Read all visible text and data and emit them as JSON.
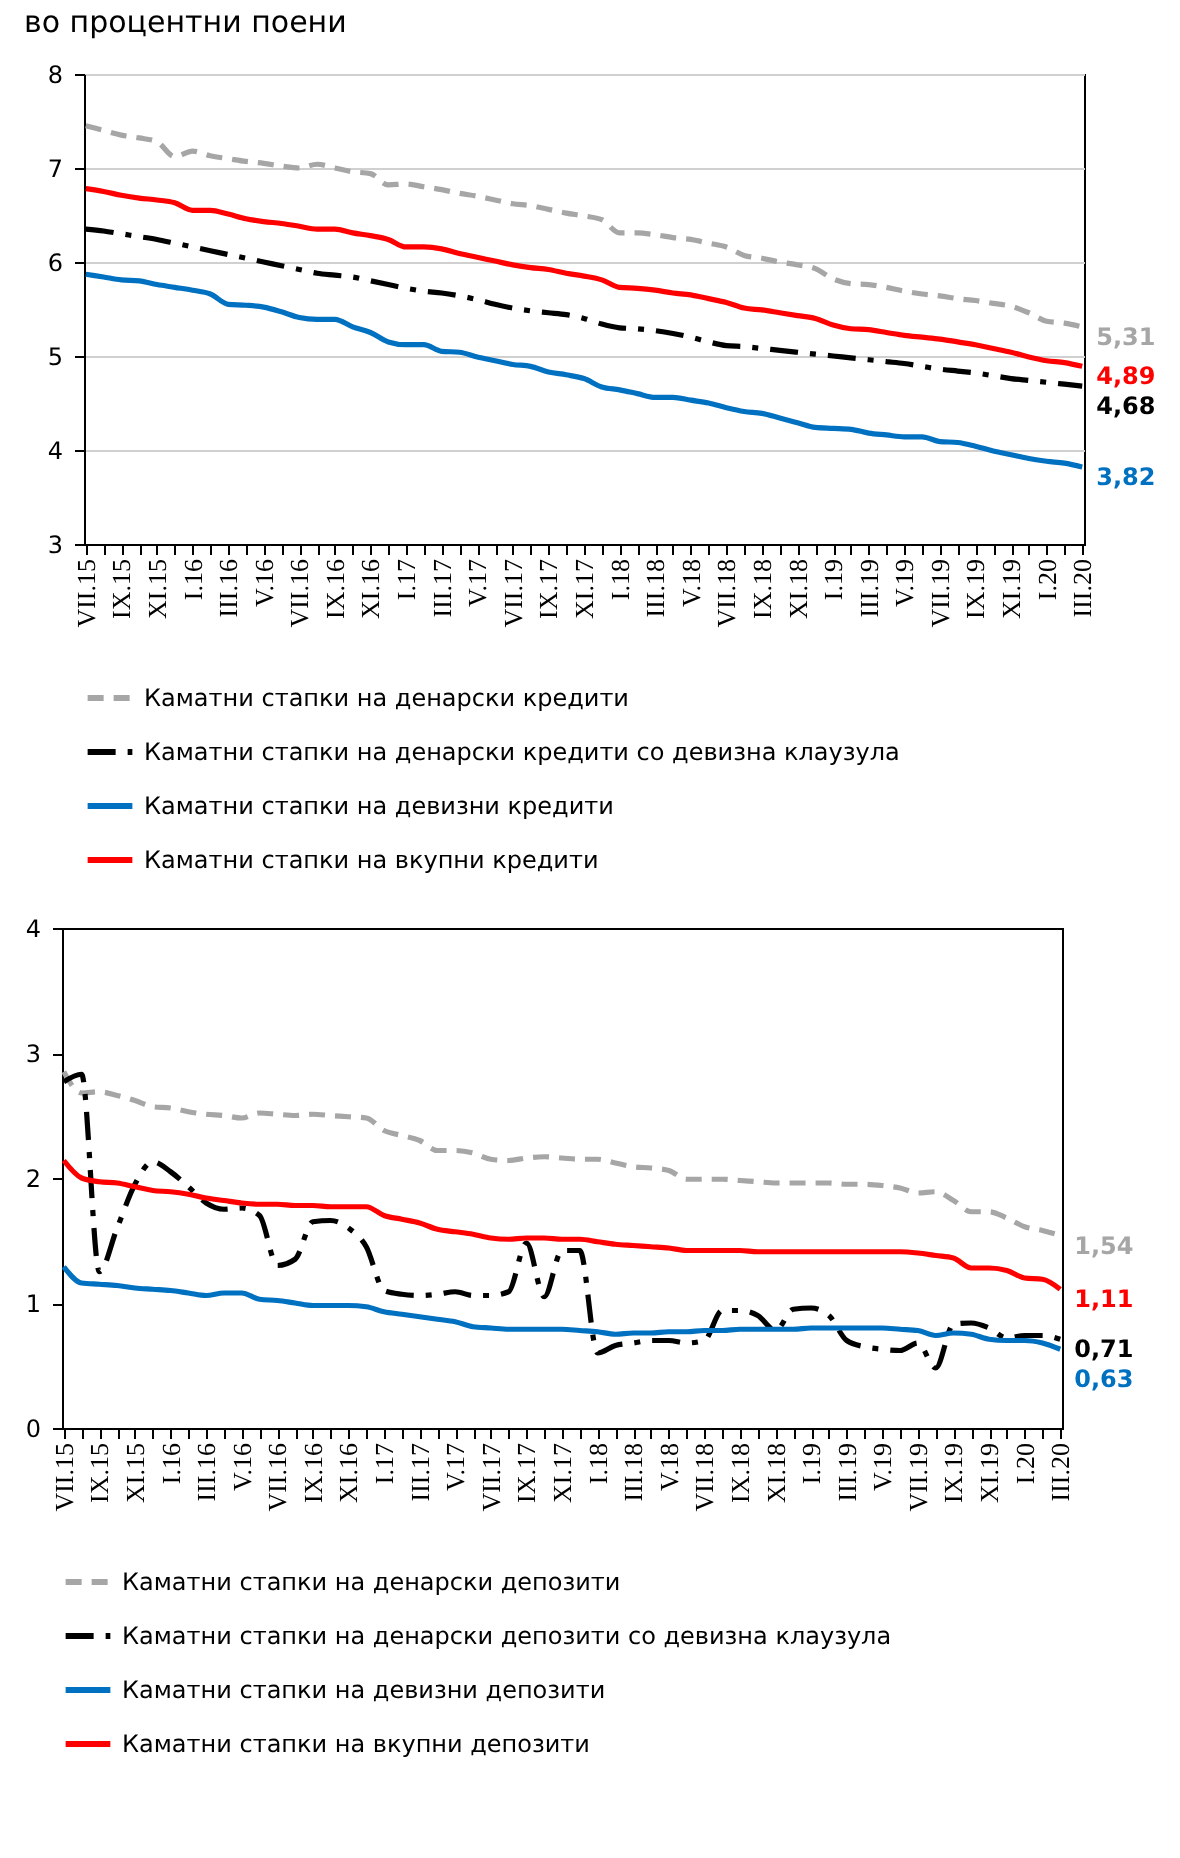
{
  "chart_data": [
    {
      "type": "line",
      "title": "во процентни поени",
      "categories": [
        "VII.15",
        null,
        "IX.15",
        null,
        "XI.15",
        null,
        "I.16",
        null,
        "III.16",
        null,
        "V.16",
        null,
        "VII.16",
        null,
        "IX.16",
        null,
        "XI.16",
        null,
        "I.17",
        null,
        "III.17",
        null,
        "V.17",
        null,
        "VII.17",
        null,
        "IX.17",
        null,
        "XI.17",
        null,
        "I.18",
        null,
        "III.18",
        null,
        "V.18",
        null,
        "VII.18",
        null,
        "IX.18",
        null,
        "XI.18",
        null,
        "I.19",
        null,
        "III.19",
        null,
        "V.19",
        null,
        "VII.19",
        null,
        "IX.19",
        null,
        "XI.19",
        null,
        "I.20",
        null,
        "III.20"
      ],
      "ylim": [
        3,
        8
      ],
      "yticks": [
        3,
        4,
        5,
        6,
        7,
        8
      ],
      "grid": "y",
      "legend": "bottom",
      "series": [
        {
          "name": "Каматни стапки на денарски кредити",
          "color": "#a6a6a6",
          "line_style": "dashed",
          "values": [
            7.45,
            7.4,
            7.35,
            7.32,
            7.28,
            7.12,
            7.18,
            7.13,
            7.1,
            7.07,
            7.05,
            7.02,
            7.0,
            7.04,
            7.0,
            6.96,
            6.94,
            6.82,
            6.83,
            6.8,
            6.77,
            6.73,
            6.7,
            6.66,
            6.62,
            6.6,
            6.56,
            6.52,
            6.49,
            6.45,
            6.31,
            6.31,
            6.29,
            6.26,
            6.24,
            6.2,
            6.16,
            6.07,
            6.04,
            6.0,
            5.97,
            5.93,
            5.82,
            5.77,
            5.76,
            5.73,
            5.69,
            5.66,
            5.64,
            5.61,
            5.59,
            5.56,
            5.53,
            5.46,
            5.37,
            5.35,
            5.31
          ],
          "value_labels": [
            null,
            null,
            null,
            null,
            null,
            null,
            null,
            null,
            null,
            null,
            null,
            null,
            null,
            null,
            null,
            null,
            null,
            null,
            null,
            null,
            null,
            null,
            null,
            null,
            null,
            null,
            null,
            null,
            null,
            null,
            null,
            null,
            null,
            null,
            null,
            null,
            null,
            null,
            null,
            null,
            null,
            null,
            null,
            null,
            null,
            null,
            null,
            null,
            null,
            null,
            null,
            null,
            null,
            null,
            null,
            null,
            "5,31"
          ]
        },
        {
          "name": "Каматни стапки на денарски кредити со девизна клаузула",
          "color": "#000000",
          "line_style": "dashdot",
          "values": [
            6.35,
            6.33,
            6.3,
            6.27,
            6.24,
            6.2,
            6.16,
            6.12,
            6.08,
            6.04,
            6.0,
            5.96,
            5.92,
            5.88,
            5.86,
            5.84,
            5.8,
            5.76,
            5.72,
            5.69,
            5.67,
            5.64,
            5.6,
            5.55,
            5.51,
            5.48,
            5.46,
            5.44,
            5.4,
            5.34,
            5.3,
            5.29,
            5.27,
            5.24,
            5.2,
            5.15,
            5.11,
            5.1,
            5.08,
            5.06,
            5.04,
            5.02,
            5.0,
            4.98,
            4.96,
            4.94,
            4.92,
            4.89,
            4.86,
            4.84,
            4.82,
            4.79,
            4.76,
            4.74,
            4.72,
            4.7,
            4.68
          ],
          "value_labels": [
            null,
            null,
            null,
            null,
            null,
            null,
            null,
            null,
            null,
            null,
            null,
            null,
            null,
            null,
            null,
            null,
            null,
            null,
            null,
            null,
            null,
            null,
            null,
            null,
            null,
            null,
            null,
            null,
            null,
            null,
            null,
            null,
            null,
            null,
            null,
            null,
            null,
            null,
            null,
            null,
            null,
            null,
            null,
            null,
            null,
            null,
            null,
            null,
            null,
            null,
            null,
            null,
            null,
            null,
            null,
            null,
            "4,68"
          ]
        },
        {
          "name": "Каматни стапки на девизни кредити",
          "color": "#0070c0",
          "line_style": "solid",
          "values": [
            5.87,
            5.84,
            5.81,
            5.8,
            5.76,
            5.73,
            5.7,
            5.66,
            5.55,
            5.54,
            5.52,
            5.47,
            5.41,
            5.39,
            5.39,
            5.31,
            5.25,
            5.15,
            5.12,
            5.12,
            5.05,
            5.04,
            4.99,
            4.95,
            4.91,
            4.89,
            4.83,
            4.8,
            4.76,
            4.67,
            4.64,
            4.6,
            4.56,
            4.56,
            4.53,
            4.5,
            4.45,
            4.41,
            4.39,
            4.34,
            4.29,
            4.24,
            4.23,
            4.22,
            4.18,
            4.16,
            4.14,
            4.14,
            4.09,
            4.08,
            4.04,
            3.99,
            3.95,
            3.91,
            3.88,
            3.86,
            3.82
          ],
          "value_labels": [
            null,
            null,
            null,
            null,
            null,
            null,
            null,
            null,
            null,
            null,
            null,
            null,
            null,
            null,
            null,
            null,
            null,
            null,
            null,
            null,
            null,
            null,
            null,
            null,
            null,
            null,
            null,
            null,
            null,
            null,
            null,
            null,
            null,
            null,
            null,
            null,
            null,
            null,
            null,
            null,
            null,
            null,
            null,
            null,
            null,
            null,
            null,
            null,
            null,
            null,
            null,
            null,
            null,
            null,
            null,
            null,
            "3,82"
          ]
        },
        {
          "name": "Каматни стапки на вкупни кредити",
          "color": "#ff0000",
          "line_style": "solid",
          "values": [
            6.78,
            6.75,
            6.71,
            6.68,
            6.66,
            6.63,
            6.55,
            6.55,
            6.51,
            6.46,
            6.43,
            6.41,
            6.38,
            6.35,
            6.35,
            6.31,
            6.28,
            6.24,
            6.16,
            6.16,
            6.14,
            6.09,
            6.05,
            6.01,
            5.97,
            5.94,
            5.92,
            5.88,
            5.85,
            5.81,
            5.73,
            5.72,
            5.7,
            5.67,
            5.65,
            5.61,
            5.57,
            5.51,
            5.49,
            5.46,
            5.43,
            5.4,
            5.33,
            5.29,
            5.28,
            5.25,
            5.22,
            5.2,
            5.18,
            5.15,
            5.12,
            5.08,
            5.04,
            4.99,
            4.95,
            4.93,
            4.89
          ],
          "value_labels": [
            null,
            null,
            null,
            null,
            null,
            null,
            null,
            null,
            null,
            null,
            null,
            null,
            null,
            null,
            null,
            null,
            null,
            null,
            null,
            null,
            null,
            null,
            null,
            null,
            null,
            null,
            null,
            null,
            null,
            null,
            null,
            null,
            null,
            null,
            null,
            null,
            null,
            null,
            null,
            null,
            null,
            null,
            null,
            null,
            null,
            null,
            null,
            null,
            null,
            null,
            null,
            null,
            null,
            null,
            null,
            null,
            "4,89"
          ]
        }
      ]
    },
    {
      "type": "line",
      "categories": [
        "VII.15",
        null,
        "IX.15",
        null,
        "XI.15",
        null,
        "I.16",
        null,
        "III.16",
        null,
        "V.16",
        null,
        "VII.16",
        null,
        "IX.16",
        null,
        "XI.16",
        null,
        "I.17",
        null,
        "III.17",
        null,
        "V.17",
        null,
        "VII.17",
        null,
        "IX.17",
        null,
        "XI.17",
        null,
        "I.18",
        null,
        "III.18",
        null,
        "V.18",
        null,
        "VII.18",
        null,
        "IX.18",
        null,
        "XI.18",
        null,
        "I.19",
        null,
        "III.19",
        null,
        "V.19",
        null,
        "VII.19",
        null,
        "IX.19",
        null,
        "XI.19",
        null,
        "I.20",
        null,
        "III.20"
      ],
      "ylim": [
        0,
        4
      ],
      "yticks": [
        0,
        1,
        2,
        3,
        4
      ],
      "legend": "bottom",
      "series": [
        {
          "name": "Каматни стапки на денарски депозити",
          "color": "#a6a6a6",
          "line_style": "dashed",
          "values": [
            2.85,
            2.68,
            2.69,
            2.66,
            2.62,
            2.57,
            2.56,
            2.53,
            2.51,
            2.5,
            2.48,
            2.52,
            2.51,
            2.5,
            2.51,
            2.5,
            2.49,
            2.48,
            2.38,
            2.34,
            2.3,
            2.22,
            2.22,
            2.2,
            2.15,
            2.14,
            2.16,
            2.17,
            2.16,
            2.15,
            2.15,
            2.12,
            2.09,
            2.08,
            2.06,
            1.99,
            1.99,
            1.99,
            1.98,
            1.97,
            1.96,
            1.96,
            1.96,
            1.96,
            1.95,
            1.95,
            1.94,
            1.92,
            1.88,
            1.89,
            1.82,
            1.73,
            1.73,
            1.68,
            1.61,
            1.58,
            1.54
          ],
          "value_labels": [
            null,
            null,
            null,
            null,
            null,
            null,
            null,
            null,
            null,
            null,
            null,
            null,
            null,
            null,
            null,
            null,
            null,
            null,
            null,
            null,
            null,
            null,
            null,
            null,
            null,
            null,
            null,
            null,
            null,
            null,
            null,
            null,
            null,
            null,
            null,
            null,
            null,
            null,
            null,
            null,
            null,
            null,
            null,
            null,
            null,
            null,
            null,
            null,
            null,
            null,
            null,
            null,
            null,
            null,
            null,
            null,
            "1,54"
          ]
        },
        {
          "name": "Каматни стапки на денарски депозити со девизна клаузула",
          "color": "#000000",
          "line_style": "dashdot",
          "values": [
            2.77,
            2.83,
            1.25,
            1.6,
            1.95,
            2.13,
            2.05,
            1.93,
            1.8,
            1.75,
            1.76,
            1.7,
            1.3,
            1.35,
            1.65,
            1.66,
            1.6,
            1.45,
            1.1,
            1.07,
            1.06,
            1.07,
            1.09,
            1.06,
            1.06,
            1.09,
            1.48,
            1.05,
            1.42,
            1.42,
            0.6,
            0.66,
            0.68,
            0.7,
            0.7,
            0.68,
            0.7,
            0.94,
            0.94,
            0.9,
            0.78,
            0.95,
            0.96,
            0.9,
            0.7,
            0.65,
            0.63,
            0.62,
            0.68,
            0.48,
            0.83,
            0.84,
            0.8,
            0.72,
            0.74,
            0.74,
            0.71
          ],
          "value_labels": [
            null,
            null,
            null,
            null,
            null,
            null,
            null,
            null,
            null,
            null,
            null,
            null,
            null,
            null,
            null,
            null,
            null,
            null,
            null,
            null,
            null,
            null,
            null,
            null,
            null,
            null,
            null,
            null,
            null,
            null,
            null,
            null,
            null,
            null,
            null,
            null,
            null,
            null,
            null,
            null,
            null,
            null,
            null,
            null,
            null,
            null,
            null,
            null,
            null,
            null,
            null,
            null,
            null,
            null,
            null,
            null,
            "0,71"
          ]
        },
        {
          "name": "Каматни стапки на девизни депозити",
          "color": "#0070c0",
          "line_style": "solid",
          "values": [
            1.29,
            1.16,
            1.15,
            1.14,
            1.12,
            1.11,
            1.1,
            1.08,
            1.06,
            1.08,
            1.08,
            1.03,
            1.02,
            1.0,
            0.98,
            0.98,
            0.98,
            0.97,
            0.93,
            0.91,
            0.89,
            0.87,
            0.85,
            0.81,
            0.8,
            0.79,
            0.79,
            0.79,
            0.79,
            0.78,
            0.77,
            0.75,
            0.76,
            0.76,
            0.77,
            0.77,
            0.78,
            0.78,
            0.79,
            0.79,
            0.79,
            0.79,
            0.8,
            0.8,
            0.8,
            0.8,
            0.8,
            0.79,
            0.78,
            0.74,
            0.76,
            0.75,
            0.71,
            0.7,
            0.7,
            0.68,
            0.63
          ],
          "value_labels": [
            null,
            null,
            null,
            null,
            null,
            null,
            null,
            null,
            null,
            null,
            null,
            null,
            null,
            null,
            null,
            null,
            null,
            null,
            null,
            null,
            null,
            null,
            null,
            null,
            null,
            null,
            null,
            null,
            null,
            null,
            null,
            null,
            null,
            null,
            null,
            null,
            null,
            null,
            null,
            null,
            null,
            null,
            null,
            null,
            null,
            null,
            null,
            null,
            null,
            null,
            null,
            null,
            null,
            null,
            null,
            null,
            "0,63"
          ]
        },
        {
          "name": "Каматни стапки на вкупни депозити",
          "color": "#ff0000",
          "line_style": "solid",
          "values": [
            2.14,
            2.0,
            1.97,
            1.96,
            1.93,
            1.9,
            1.89,
            1.87,
            1.84,
            1.82,
            1.8,
            1.79,
            1.79,
            1.78,
            1.78,
            1.77,
            1.77,
            1.77,
            1.7,
            1.67,
            1.64,
            1.59,
            1.57,
            1.55,
            1.52,
            1.51,
            1.52,
            1.52,
            1.51,
            1.51,
            1.49,
            1.47,
            1.46,
            1.45,
            1.44,
            1.42,
            1.42,
            1.42,
            1.42,
            1.41,
            1.41,
            1.41,
            1.41,
            1.41,
            1.41,
            1.41,
            1.41,
            1.41,
            1.4,
            1.38,
            1.36,
            1.28,
            1.28,
            1.26,
            1.2,
            1.19,
            1.11
          ],
          "value_labels": [
            null,
            null,
            null,
            null,
            null,
            null,
            null,
            null,
            null,
            null,
            null,
            null,
            null,
            null,
            null,
            null,
            null,
            null,
            null,
            null,
            null,
            null,
            null,
            null,
            null,
            null,
            null,
            null,
            null,
            null,
            null,
            null,
            null,
            null,
            null,
            null,
            null,
            null,
            null,
            null,
            null,
            null,
            null,
            null,
            null,
            null,
            null,
            null,
            null,
            null,
            null,
            null,
            null,
            null,
            null,
            null,
            "1,11"
          ]
        }
      ]
    }
  ]
}
